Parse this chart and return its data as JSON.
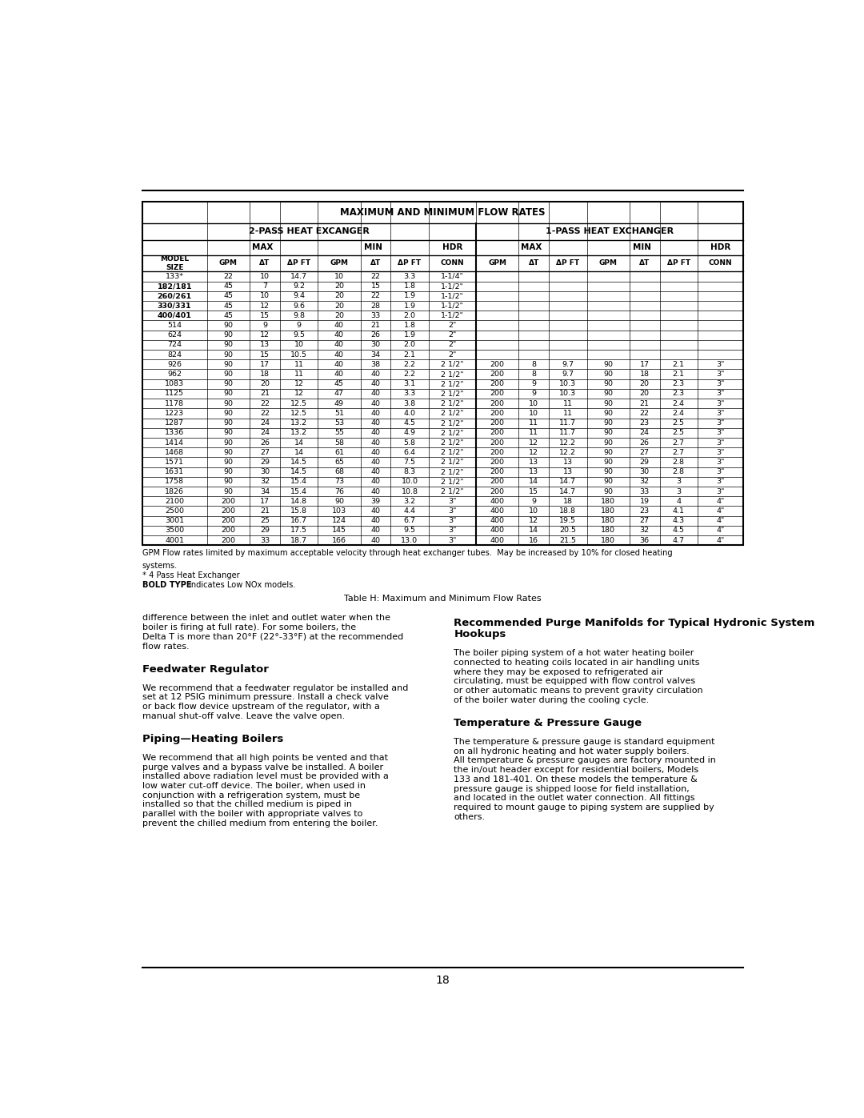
{
  "page_width": 10.8,
  "page_height": 13.97,
  "page_number": "18",
  "table_title": "MAXIMUM AND MINIMUM FLOW RATES",
  "col2_title": "2-PASS HEAT EXCANGER",
  "col3_title": "1-PASS HEAT EXCHANGER",
  "rows": [
    [
      "133*",
      "22",
      "10",
      "14.7",
      "10",
      "22",
      "3.3",
      "1-1/4\"",
      "",
      "",
      "",
      "",
      "",
      "",
      ""
    ],
    [
      "182/181",
      "45",
      "7",
      "9.2",
      "20",
      "15",
      "1.8",
      "1-1/2\"",
      "",
      "",
      "",
      "",
      "",
      "",
      ""
    ],
    [
      "260/261",
      "45",
      "10",
      "9.4",
      "20",
      "22",
      "1.9",
      "1-1/2\"",
      "",
      "",
      "",
      "",
      "",
      "",
      ""
    ],
    [
      "330/331",
      "45",
      "12",
      "9.6",
      "20",
      "28",
      "1.9",
      "1-1/2\"",
      "",
      "",
      "",
      "",
      "",
      "",
      ""
    ],
    [
      "400/401",
      "45",
      "15",
      "9.8",
      "20",
      "33",
      "2.0",
      "1-1/2\"",
      "",
      "",
      "",
      "",
      "",
      "",
      ""
    ],
    [
      "514",
      "90",
      "9",
      "9",
      "40",
      "21",
      "1.8",
      "2\"",
      "",
      "",
      "",
      "",
      "",
      "",
      ""
    ],
    [
      "624",
      "90",
      "12",
      "9.5",
      "40",
      "26",
      "1.9",
      "2\"",
      "",
      "",
      "",
      "",
      "",
      "",
      ""
    ],
    [
      "724",
      "90",
      "13",
      "10",
      "40",
      "30",
      "2.0",
      "2\"",
      "",
      "",
      "",
      "",
      "",
      "",
      ""
    ],
    [
      "824",
      "90",
      "15",
      "10.5",
      "40",
      "34",
      "2.1",
      "2\"",
      "",
      "",
      "",
      "",
      "",
      "",
      ""
    ],
    [
      "926",
      "90",
      "17",
      "11",
      "40",
      "38",
      "2.2",
      "2 1/2\"",
      "200",
      "8",
      "9.7",
      "90",
      "17",
      "2.1",
      "3\""
    ],
    [
      "962",
      "90",
      "18",
      "11",
      "40",
      "40",
      "2.2",
      "2 1/2\"",
      "200",
      "8",
      "9.7",
      "90",
      "18",
      "2.1",
      "3\""
    ],
    [
      "1083",
      "90",
      "20",
      "12",
      "45",
      "40",
      "3.1",
      "2 1/2\"",
      "200",
      "9",
      "10.3",
      "90",
      "20",
      "2.3",
      "3\""
    ],
    [
      "1125",
      "90",
      "21",
      "12",
      "47",
      "40",
      "3.3",
      "2 1/2\"",
      "200",
      "9",
      "10.3",
      "90",
      "20",
      "2.3",
      "3\""
    ],
    [
      "1178",
      "90",
      "22",
      "12.5",
      "49",
      "40",
      "3.8",
      "2 1/2\"",
      "200",
      "10",
      "11",
      "90",
      "21",
      "2.4",
      "3\""
    ],
    [
      "1223",
      "90",
      "22",
      "12.5",
      "51",
      "40",
      "4.0",
      "2 1/2\"",
      "200",
      "10",
      "11",
      "90",
      "22",
      "2.4",
      "3\""
    ],
    [
      "1287",
      "90",
      "24",
      "13.2",
      "53",
      "40",
      "4.5",
      "2 1/2\"",
      "200",
      "11",
      "11.7",
      "90",
      "23",
      "2.5",
      "3\""
    ],
    [
      "1336",
      "90",
      "24",
      "13.2",
      "55",
      "40",
      "4.9",
      "2 1/2\"",
      "200",
      "11",
      "11.7",
      "90",
      "24",
      "2.5",
      "3\""
    ],
    [
      "1414",
      "90",
      "26",
      "14",
      "58",
      "40",
      "5.8",
      "2 1/2\"",
      "200",
      "12",
      "12.2",
      "90",
      "26",
      "2.7",
      "3\""
    ],
    [
      "1468",
      "90",
      "27",
      "14",
      "61",
      "40",
      "6.4",
      "2 1/2\"",
      "200",
      "12",
      "12.2",
      "90",
      "27",
      "2.7",
      "3\""
    ],
    [
      "1571",
      "90",
      "29",
      "14.5",
      "65",
      "40",
      "7.5",
      "2 1/2\"",
      "200",
      "13",
      "13",
      "90",
      "29",
      "2.8",
      "3\""
    ],
    [
      "1631",
      "90",
      "30",
      "14.5",
      "68",
      "40",
      "8.3",
      "2 1/2\"",
      "200",
      "13",
      "13",
      "90",
      "30",
      "2.8",
      "3\""
    ],
    [
      "1758",
      "90",
      "32",
      "15.4",
      "73",
      "40",
      "10.0",
      "2 1/2\"",
      "200",
      "14",
      "14.7",
      "90",
      "32",
      "3",
      "3\""
    ],
    [
      "1826",
      "90",
      "34",
      "15.4",
      "76",
      "40",
      "10.8",
      "2 1/2\"",
      "200",
      "15",
      "14.7",
      "90",
      "33",
      "3",
      "3\""
    ],
    [
      "2100",
      "200",
      "17",
      "14.8",
      "90",
      "39",
      "3.2",
      "3\"",
      "400",
      "9",
      "18",
      "180",
      "19",
      "4",
      "4\""
    ],
    [
      "2500",
      "200",
      "21",
      "15.8",
      "103",
      "40",
      "4.4",
      "3\"",
      "400",
      "10",
      "18.8",
      "180",
      "23",
      "4.1",
      "4\""
    ],
    [
      "3001",
      "200",
      "25",
      "16.7",
      "124",
      "40",
      "6.7",
      "3\"",
      "400",
      "12",
      "19.5",
      "180",
      "27",
      "4.3",
      "4\""
    ],
    [
      "3500",
      "200",
      "29",
      "17.5",
      "145",
      "40",
      "9.5",
      "3\"",
      "400",
      "14",
      "20.5",
      "180",
      "32",
      "4.5",
      "4\""
    ],
    [
      "4001",
      "200",
      "33",
      "18.7",
      "166",
      "40",
      "13.0",
      "3\"",
      "400",
      "16",
      "21.5",
      "180",
      "36",
      "4.7",
      "4\""
    ]
  ],
  "bold_model_rows": [
    1,
    2,
    3,
    4
  ],
  "gray_rows_1pass": [
    0,
    1,
    2,
    3,
    4,
    5,
    6,
    7,
    8
  ],
  "footnote1": "GPM Flow rates limited by maximum acceptable velocity through heat exchanger tubes.  May be increased by 10% for closed heating",
  "footnote1b": "systems.",
  "footnote2": "* 4 Pass Heat Exchanger",
  "footnote3_bold": "BOLD TYPE",
  "footnote3_rest": " indicates Low NOx models.",
  "table_caption": "Table H: Maximum and Minimum Flow Rates",
  "left_col_text": [
    {
      "type": "body",
      "text": "difference between the inlet and outlet water when the boiler is firing at full rate). For some boilers, the Delta T is more than 20°F (22°-33°F) at the recommended flow rates."
    },
    {
      "type": "heading",
      "text": "Feedwater Regulator"
    },
    {
      "type": "body",
      "text": "We recommend that a feedwater regulator be installed and set at 12 PSIG minimum pressure. Install a check valve or back flow device upstream of the regulator, with a manual shut-off valve. Leave the valve open."
    },
    {
      "type": "heading",
      "text": "Piping—Heating Boilers"
    },
    {
      "type": "body",
      "text": "We recommend that all high points be vented and that purge valves and a bypass valve be installed. A boiler installed above radiation level must be provided with a low water cut-off device. The boiler, when used in conjunction with a refrigeration system, must be installed so that the chilled medium is piped in parallel with the boiler with appropriate valves to prevent the chilled medium from entering the boiler."
    }
  ],
  "right_col_text": [
    {
      "type": "heading",
      "text": "Recommended Purge Manifolds for Typical Hydronic System Hookups"
    },
    {
      "type": "body",
      "text": "The boiler piping system of a hot water heating boiler connected to heating coils located in air handling units where they may be exposed to refrigerated air circulating, must be equipped with flow control valves or other automatic means to prevent gravity circulation of the boiler water during the cooling cycle."
    },
    {
      "type": "heading",
      "text": "Temperature & Pressure Gauge"
    },
    {
      "type": "body",
      "text": "The temperature & pressure gauge is standard equipment on all hydronic heating and hot water supply boilers. All temperature & pressure gauges are factory mounted in the in/out header except for residential boilers, Models 133 and 181-401. On these models the temperature & pressure gauge is shipped loose for field installation, and located in the outlet water connection. All fittings required to mount gauge to piping system are supplied by others."
    }
  ]
}
